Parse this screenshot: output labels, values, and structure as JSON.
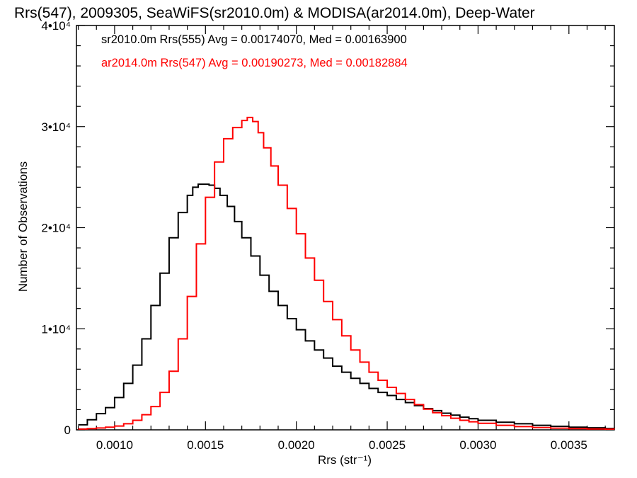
{
  "chart_data": {
    "type": "line",
    "step": true,
    "title": "Rrs(547), 2009305, SeaWiFS(sr2010.0m) & MODISA(ar2014.0m), Deep-Water",
    "xlabel": "Rrs (str⁻¹)",
    "ylabel": "Number of Observations",
    "xlim": [
      0.00079,
      0.00375
    ],
    "ylim": [
      0,
      40000
    ],
    "grid": false,
    "legend_position": "top-left",
    "x_ticks": [
      0.001,
      0.0015,
      0.002,
      0.0025,
      0.003,
      0.0035
    ],
    "x_tick_labels": [
      "0.0010",
      "0.0015",
      "0.0020",
      "0.0025",
      "0.0030",
      "0.0035"
    ],
    "y_ticks": [
      0,
      10000,
      20000,
      30000,
      40000
    ],
    "y_tick_labels": [
      "0",
      "1•10⁴",
      "2•10⁴",
      "3•10⁴",
      "4•10⁴"
    ],
    "series": [
      {
        "name": "sr2010.0m Rrs(555) Avg = 0.00174070, Med = 0.00163900",
        "color": "#000000",
        "x": [
          0.0008,
          0.00085,
          0.0009,
          0.00095,
          0.001,
          0.00105,
          0.0011,
          0.00115,
          0.0012,
          0.00125,
          0.0013,
          0.00135,
          0.0014,
          0.00143,
          0.00146,
          0.00149,
          0.00152,
          0.00155,
          0.00158,
          0.00162,
          0.00166,
          0.0017,
          0.00175,
          0.0018,
          0.00185,
          0.0019,
          0.00195,
          0.002,
          0.00205,
          0.0021,
          0.00215,
          0.0022,
          0.00225,
          0.0023,
          0.00235,
          0.0024,
          0.00245,
          0.0025,
          0.00255,
          0.0026,
          0.00265,
          0.0027,
          0.00275,
          0.0028,
          0.00285,
          0.0029,
          0.00295,
          0.003,
          0.0031,
          0.0032,
          0.0033,
          0.0034,
          0.0035,
          0.0036,
          0.0037,
          0.00375
        ],
        "y": [
          500,
          1000,
          1600,
          2200,
          3200,
          4600,
          6400,
          9000,
          12300,
          15500,
          19000,
          21500,
          23200,
          24000,
          24300,
          24300,
          24200,
          23900,
          23200,
          22100,
          20600,
          19000,
          17200,
          15300,
          13700,
          12300,
          11000,
          9900,
          8800,
          7900,
          7100,
          6300,
          5700,
          5100,
          4600,
          4100,
          3700,
          3400,
          3000,
          2700,
          2400,
          2100,
          1900,
          1650,
          1450,
          1250,
          1100,
          950,
          750,
          600,
          450,
          350,
          260,
          200,
          140,
          120
        ]
      },
      {
        "name": "ar2014.0m Rrs(547) Avg = 0.00190273, Med = 0.00182884",
        "color": "#ff0000",
        "x": [
          0.0008,
          0.00085,
          0.0009,
          0.00095,
          0.001,
          0.00105,
          0.0011,
          0.00115,
          0.0012,
          0.00125,
          0.0013,
          0.00135,
          0.0014,
          0.00145,
          0.0015,
          0.00155,
          0.0016,
          0.00165,
          0.0017,
          0.00173,
          0.00176,
          0.00179,
          0.00182,
          0.00186,
          0.0019,
          0.00195,
          0.002,
          0.00205,
          0.0021,
          0.00215,
          0.0022,
          0.00225,
          0.0023,
          0.00235,
          0.0024,
          0.00245,
          0.0025,
          0.00255,
          0.0026,
          0.00265,
          0.0027,
          0.00275,
          0.0028,
          0.00285,
          0.0029,
          0.00295,
          0.003,
          0.0031,
          0.0032,
          0.0033,
          0.0034,
          0.0035,
          0.0036,
          0.0037,
          0.00375
        ],
        "y": [
          80,
          120,
          180,
          260,
          380,
          600,
          950,
          1500,
          2300,
          3700,
          5800,
          9000,
          13200,
          18400,
          23000,
          26500,
          28800,
          29900,
          30600,
          30900,
          30500,
          29400,
          27900,
          26100,
          24200,
          21900,
          19400,
          17000,
          14800,
          12700,
          10900,
          9300,
          7900,
          6700,
          5700,
          4900,
          4200,
          3600,
          3000,
          2500,
          2050,
          1700,
          1400,
          1150,
          950,
          800,
          650,
          450,
          320,
          230,
          170,
          120,
          90,
          70,
          60
        ]
      }
    ]
  }
}
